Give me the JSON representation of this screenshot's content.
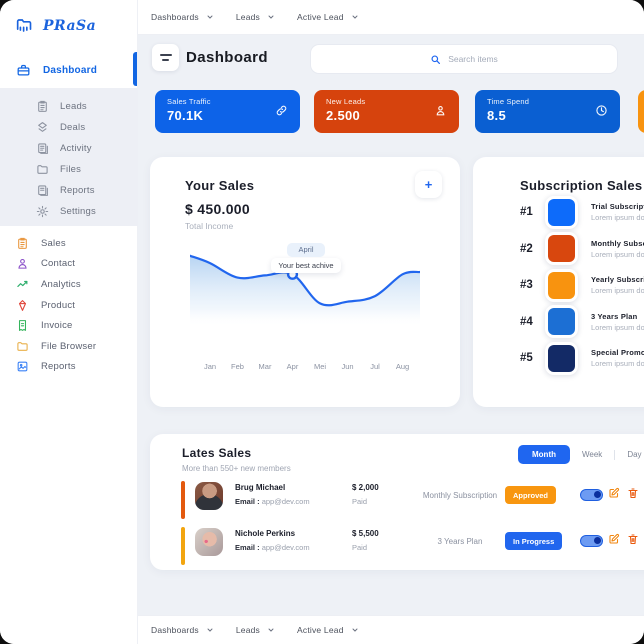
{
  "nav": {
    "items": [
      "Dashboards",
      "Leads",
      "Active Lead"
    ]
  },
  "sidebar": {
    "logo": "PRaSa",
    "active_item": "Dashboard",
    "submenu": [
      "Leads",
      "Deals",
      "Activity",
      "Files",
      "Reports",
      "Settings"
    ],
    "menu": [
      "Sales",
      "Contact",
      "Analytics",
      "Product",
      "Invoice",
      "File Browser",
      "Reports"
    ]
  },
  "header": {
    "title": "Dashboard",
    "search_placeholder": "Search items"
  },
  "stats": [
    {
      "label": "Sales Traffic",
      "value": "70.1K",
      "color": "#0d63e8",
      "icon": "link-icon"
    },
    {
      "label": "New Leads",
      "value": "2.500",
      "color": "#d6430d",
      "icon": "person-icon"
    },
    {
      "label": "Time Spend",
      "value": "8.5",
      "color": "#0a5fd2",
      "icon": "clock-icon"
    },
    {
      "label": "",
      "value": "",
      "color": "#f8930f",
      "icon": ""
    }
  ],
  "your_sales": {
    "title": "Your Sales",
    "amount": "$ 450.000",
    "subtitle": "Total Income",
    "add_button": "+",
    "tooltip": {
      "month": "April",
      "text": "Your best achive"
    }
  },
  "chart_data": {
    "type": "area",
    "title": "Your Sales",
    "x": [
      "Jan",
      "Feb",
      "Mar",
      "Apr",
      "Mei",
      "Jun",
      "Jul",
      "Aug"
    ],
    "values": [
      82,
      56,
      60,
      62,
      10,
      13,
      23,
      62
    ],
    "edge_values": [
      95,
      66
    ],
    "highlight_index": 3,
    "ylim": [
      0,
      100
    ],
    "line_color": "#2166ee",
    "fill_color": "#9ec5ee",
    "grid": false,
    "legend": false
  },
  "subscription_sales": {
    "title": "Subscription Sales",
    "items": [
      {
        "rank": "#1",
        "color": "#0d6bfa",
        "name": "Trial Subscription",
        "desc": "Lorem ipsum dolor"
      },
      {
        "rank": "#2",
        "color": "#d8470e",
        "name": "Monthly Subscription",
        "desc": "Lorem ipsum dolor"
      },
      {
        "rank": "#3",
        "color": "#f8930f",
        "name": "Yearly Subscription",
        "desc": "Lorem ipsum dolor"
      },
      {
        "rank": "#4",
        "color": "#1c6fd4",
        "name": "3 Years Plan",
        "desc": "Lorem ipsum dolor"
      },
      {
        "rank": "#5",
        "color": "#132a66",
        "name": "Special Promo",
        "desc": "Lorem ipsum dolor"
      }
    ]
  },
  "lates_sales": {
    "title": "Lates Sales",
    "subtitle": "More than 550+ new members",
    "tabs": [
      "Month",
      "Week",
      "Day"
    ],
    "active_tab": "Month",
    "rows": [
      {
        "name": "Brug Michael",
        "email_label": "Email :",
        "email": "app@dev.com",
        "amount": "$ 2,000",
        "paid": "Paid",
        "plan": "Monthly Subscription",
        "status": "Approved",
        "status_color": "#f8960f",
        "accent_color": "#e3590e"
      },
      {
        "name": "Nichole Perkins",
        "email_label": "Email :",
        "email": "app@dev.com",
        "amount": "$ 5,500",
        "paid": "Paid",
        "plan": "3 Years Plan",
        "status": "In Progress",
        "status_color": "#2166ee",
        "accent_color": "#f2a50f"
      }
    ]
  }
}
